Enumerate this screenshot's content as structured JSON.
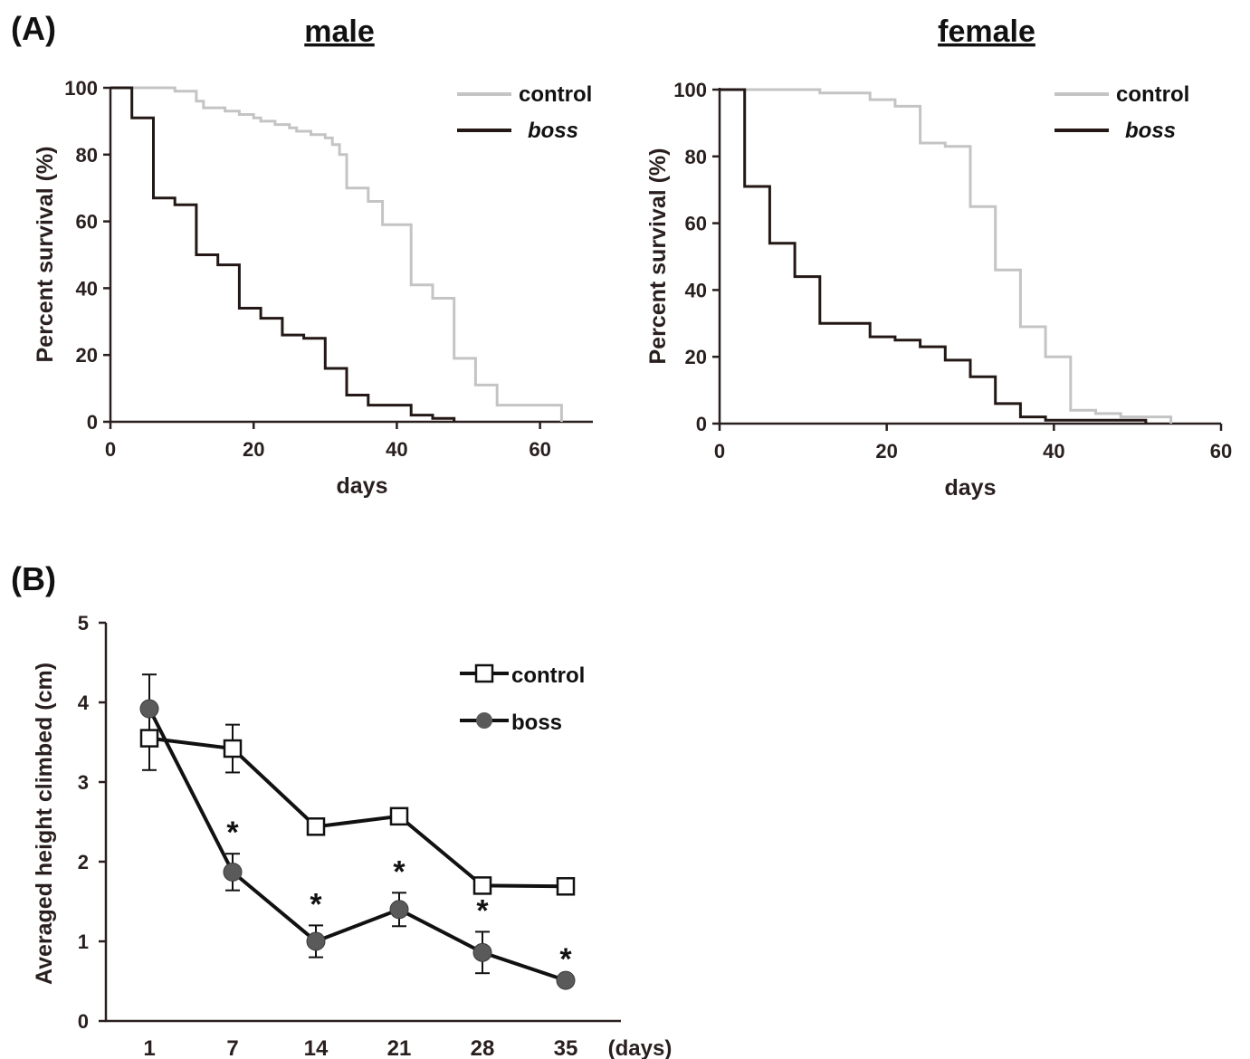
{
  "panels": {
    "a_label": "(A)",
    "b_label": "(B)"
  },
  "colors": {
    "control_km": "#c4c4c4",
    "boss_km": "#231815",
    "line_b": "#111111",
    "boss_marker": "#5a5a5a",
    "control_marker": "#ffffff"
  },
  "chart_data": [
    {
      "type": "line",
      "step": true,
      "title": "male",
      "xlabel": "days",
      "ylabel": "Percent survival (%)",
      "xlim": [
        0,
        67
      ],
      "ylim": [
        0,
        100
      ],
      "x_ticks": [
        "0",
        "20",
        "40",
        "60"
      ],
      "y_ticks": [
        "0",
        "20",
        "40",
        "60",
        "80",
        "100"
      ],
      "legend_position": "top-right",
      "series": [
        {
          "name": "control",
          "points": [
            [
              0,
              100
            ],
            [
              9,
              100
            ],
            [
              9,
              99
            ],
            [
              12,
              99
            ],
            [
              12,
              96
            ],
            [
              13,
              96
            ],
            [
              13,
              94
            ],
            [
              16,
              94
            ],
            [
              16,
              93
            ],
            [
              18,
              93
            ],
            [
              18,
              92
            ],
            [
              20,
              92
            ],
            [
              20,
              91
            ],
            [
              21,
              91
            ],
            [
              21,
              90
            ],
            [
              23,
              90
            ],
            [
              23,
              89
            ],
            [
              25,
              89
            ],
            [
              25,
              88
            ],
            [
              26,
              88
            ],
            [
              26,
              87
            ],
            [
              28,
              87
            ],
            [
              28,
              86
            ],
            [
              30,
              86
            ],
            [
              30,
              85
            ],
            [
              31,
              85
            ],
            [
              31,
              83
            ],
            [
              32,
              83
            ],
            [
              32,
              80
            ],
            [
              33,
              80
            ],
            [
              33,
              70
            ],
            [
              36,
              70
            ],
            [
              36,
              66
            ],
            [
              38,
              66
            ],
            [
              38,
              59
            ],
            [
              42,
              59
            ],
            [
              42,
              41
            ],
            [
              45,
              41
            ],
            [
              45,
              37
            ],
            [
              48,
              37
            ],
            [
              48,
              19
            ],
            [
              51,
              19
            ],
            [
              51,
              11
            ],
            [
              54,
              11
            ],
            [
              54,
              5
            ],
            [
              63,
              5
            ],
            [
              63,
              0
            ]
          ]
        },
        {
          "name": "boss",
          "points": [
            [
              0,
              100
            ],
            [
              3,
              100
            ],
            [
              3,
              91
            ],
            [
              6,
              91
            ],
            [
              6,
              67
            ],
            [
              9,
              67
            ],
            [
              9,
              65
            ],
            [
              12,
              65
            ],
            [
              12,
              50
            ],
            [
              15,
              50
            ],
            [
              15,
              47
            ],
            [
              18,
              47
            ],
            [
              18,
              34
            ],
            [
              21,
              34
            ],
            [
              21,
              31
            ],
            [
              24,
              31
            ],
            [
              24,
              26
            ],
            [
              27,
              26
            ],
            [
              27,
              25
            ],
            [
              30,
              25
            ],
            [
              30,
              16
            ],
            [
              33,
              16
            ],
            [
              33,
              8
            ],
            [
              36,
              8
            ],
            [
              36,
              5
            ],
            [
              42,
              5
            ],
            [
              42,
              2
            ],
            [
              45,
              2
            ],
            [
              45,
              1
            ],
            [
              48,
              1
            ],
            [
              48,
              0
            ]
          ]
        }
      ]
    },
    {
      "type": "line",
      "step": true,
      "title": "female",
      "xlabel": "days",
      "ylabel": "Percent survival (%)",
      "xlim": [
        0,
        60
      ],
      "ylim": [
        0,
        100
      ],
      "x_ticks": [
        "0",
        "20",
        "40",
        "60"
      ],
      "y_ticks": [
        "0",
        "20",
        "40",
        "60",
        "80",
        "100"
      ],
      "legend_position": "top-right",
      "series": [
        {
          "name": "control",
          "points": [
            [
              0,
              100
            ],
            [
              12,
              100
            ],
            [
              12,
              99
            ],
            [
              18,
              99
            ],
            [
              18,
              97
            ],
            [
              21,
              97
            ],
            [
              21,
              95
            ],
            [
              24,
              95
            ],
            [
              24,
              84
            ],
            [
              27,
              84
            ],
            [
              27,
              83
            ],
            [
              30,
              83
            ],
            [
              30,
              65
            ],
            [
              33,
              65
            ],
            [
              33,
              46
            ],
            [
              36,
              46
            ],
            [
              36,
              29
            ],
            [
              39,
              29
            ],
            [
              39,
              20
            ],
            [
              42,
              20
            ],
            [
              42,
              4
            ],
            [
              45,
              4
            ],
            [
              45,
              3
            ],
            [
              48,
              3
            ],
            [
              48,
              2
            ],
            [
              54,
              2
            ],
            [
              54,
              0
            ]
          ]
        },
        {
          "name": "boss",
          "points": [
            [
              0,
              100
            ],
            [
              3,
              100
            ],
            [
              3,
              71
            ],
            [
              6,
              71
            ],
            [
              6,
              54
            ],
            [
              9,
              54
            ],
            [
              9,
              44
            ],
            [
              12,
              44
            ],
            [
              12,
              30
            ],
            [
              18,
              30
            ],
            [
              18,
              26
            ],
            [
              21,
              26
            ],
            [
              21,
              25
            ],
            [
              24,
              25
            ],
            [
              24,
              23
            ],
            [
              27,
              23
            ],
            [
              27,
              19
            ],
            [
              30,
              19
            ],
            [
              30,
              14
            ],
            [
              33,
              14
            ],
            [
              33,
              6
            ],
            [
              36,
              6
            ],
            [
              36,
              2
            ],
            [
              39,
              2
            ],
            [
              39,
              1
            ],
            [
              51,
              1
            ],
            [
              51,
              0
            ]
          ]
        }
      ]
    },
    {
      "type": "line",
      "categories": [
        "1",
        "7",
        "14",
        "21",
        "28",
        "35"
      ],
      "x_unit": "(days)",
      "ylabel": "Averaged height climbed (cm)",
      "ylim": [
        0,
        5
      ],
      "y_ticks": [
        "0",
        "1",
        "2",
        "3",
        "4",
        "5"
      ],
      "legend_position": "top-right",
      "series": [
        {
          "name": "control",
          "marker": "open-square",
          "values": [
            3.55,
            3.42,
            2.44,
            2.57,
            1.7,
            1.69
          ],
          "errors": [
            0.4,
            0.3,
            0.0,
            0.0,
            0.0,
            0.0
          ]
        },
        {
          "name": "boss",
          "marker": "filled-circle",
          "values": [
            3.92,
            1.87,
            1.0,
            1.4,
            0.86,
            0.51
          ],
          "errors": [
            0.43,
            0.23,
            0.2,
            0.21,
            0.26,
            0.0
          ]
        }
      ],
      "significance": [
        "",
        "*",
        "*",
        "*",
        "*",
        "*"
      ]
    }
  ]
}
